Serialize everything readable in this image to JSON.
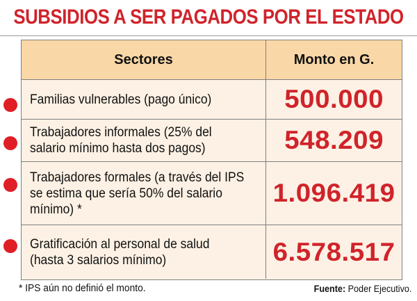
{
  "title": "SUBSIDIOS A SER PAGADOS POR EL ESTADO",
  "table": {
    "headers": {
      "sector": "Sectores",
      "amount": "Monto en G."
    },
    "rows": [
      {
        "sector": "Familias vulnerables (pago único)",
        "amount": "500.000"
      },
      {
        "sector": "Trabajadores informales (25% del salario mínimo hasta dos pagos)",
        "amount": "548.209"
      },
      {
        "sector": "Trabajadores formales (a través del IPS se estima que sería 50% del salario mínimo) *",
        "amount": "1.096.419"
      },
      {
        "sector": "Gratificación al personal de salud (hasta 3 salarios mínimo)",
        "amount": "6.578.517"
      }
    ]
  },
  "footnote": "* IPS aún no definió el monto.",
  "source": {
    "label": "Fuente:",
    "value": "Poder Ejecutivo."
  },
  "colors": {
    "title": "#d0232b",
    "header_bg": "#f9d7a6",
    "row_bg": "#fcf1e4",
    "bullet": "#e01e26"
  },
  "icons": {
    "row_marker": "red-dot-bullet"
  }
}
